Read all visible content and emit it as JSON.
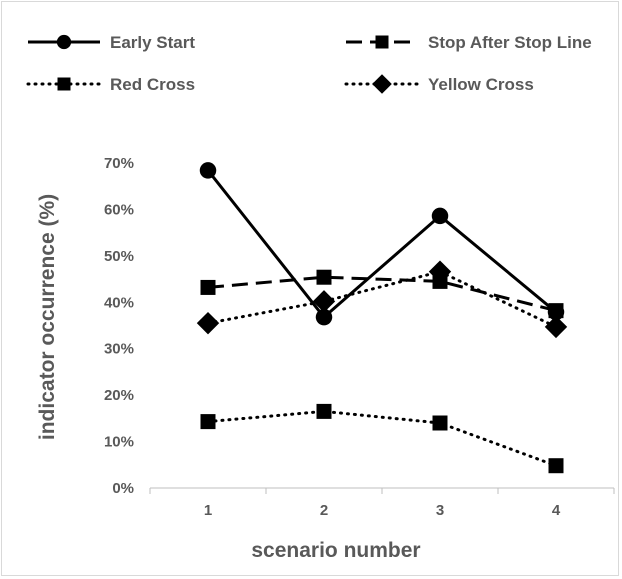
{
  "chart_data": {
    "type": "line",
    "title": "",
    "xlabel": "scenario number",
    "ylabel": "indicator occurrence (%)",
    "categories": [
      "1",
      "2",
      "3",
      "4"
    ],
    "ylim": [
      0,
      70
    ],
    "yticks": [
      "0%",
      "10%",
      "20%",
      "30%",
      "40%",
      "50%",
      "60%",
      "70%"
    ],
    "grid": false,
    "legend_position": "top",
    "series": [
      {
        "name": "Early Start",
        "values": [
          68.4,
          36.8,
          58.6,
          37.9
        ],
        "marker": "circle",
        "line": "solid",
        "color": "#000000"
      },
      {
        "name": "Stop After Stop Line",
        "values": [
          43.2,
          45.4,
          44.5,
          38.2
        ],
        "marker": "square",
        "line": "dashed",
        "color": "#000000"
      },
      {
        "name": "Red Cross",
        "values": [
          14.3,
          16.5,
          14.0,
          4.8
        ],
        "marker": "square",
        "line": "dotted",
        "color": "#000000"
      },
      {
        "name": "Yellow Cross",
        "values": [
          35.5,
          40.2,
          46.6,
          34.7
        ],
        "marker": "diamond",
        "line": "dotted",
        "color": "#000000"
      }
    ]
  }
}
